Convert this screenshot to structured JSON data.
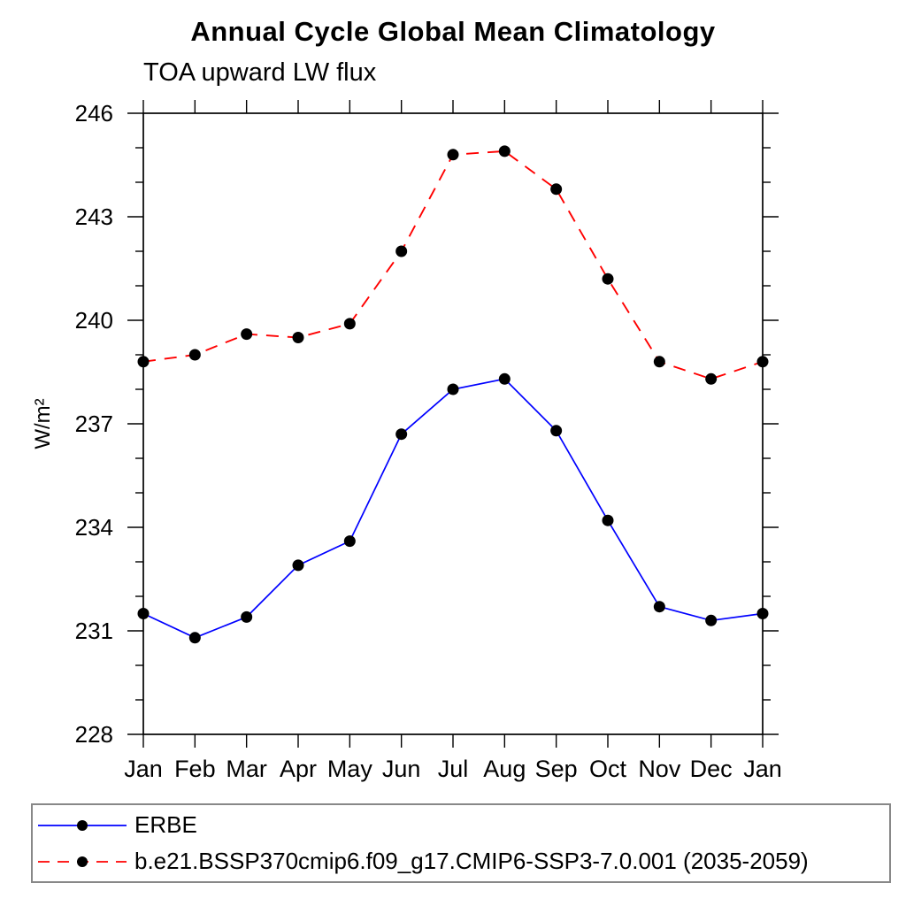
{
  "chart_data": {
    "type": "line",
    "title": "Annual Cycle Global Mean Climatology",
    "subtitle": "TOA upward LW flux",
    "ylabel": "W/m²",
    "xlabel": "",
    "categories": [
      "Jan",
      "Feb",
      "Mar",
      "Apr",
      "May",
      "Jun",
      "Jul",
      "Aug",
      "Sep",
      "Oct",
      "Nov",
      "Dec",
      "Jan"
    ],
    "ylim": [
      228,
      246
    ],
    "ytick_major_step": 3,
    "ytick_minor_step": 1,
    "ytick_labels": [
      "228",
      "231",
      "234",
      "237",
      "240",
      "243",
      "246"
    ],
    "grid": false,
    "legend_position": "bottom-left-box",
    "series": [
      {
        "name": "ERBE",
        "color": "#0000ff",
        "line_style": "solid",
        "marker": "circle",
        "marker_color": "#000000",
        "values": [
          231.5,
          230.8,
          231.4,
          232.9,
          233.6,
          236.7,
          238.0,
          238.3,
          236.8,
          234.2,
          231.7,
          231.3,
          231.5
        ]
      },
      {
        "name": "b.e21.BSSP370cmip6.f09_g17.CMIP6-SSP3-7.0.001 (2035-2059)",
        "color": "#ff0000",
        "line_style": "dashed",
        "marker": "circle",
        "marker_color": "#000000",
        "values": [
          238.8,
          239.0,
          239.6,
          239.5,
          239.9,
          242.0,
          244.8,
          244.9,
          243.8,
          241.2,
          238.8,
          238.3,
          238.8
        ]
      }
    ]
  }
}
